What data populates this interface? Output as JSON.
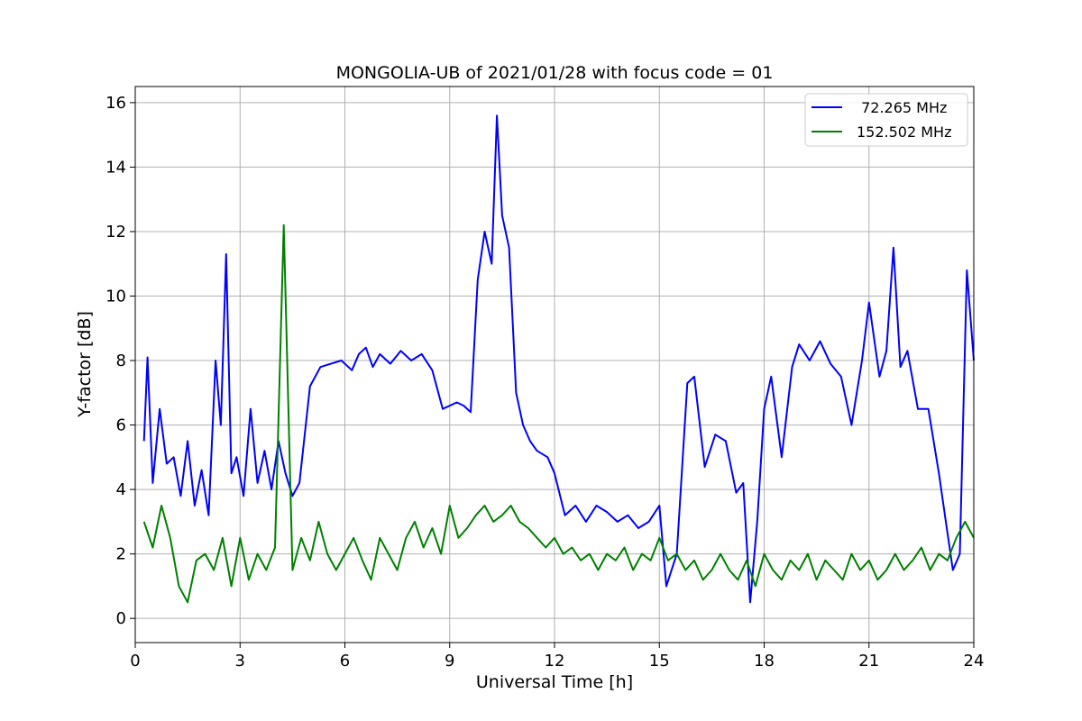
{
  "chart_data": {
    "type": "line",
    "title": "MONGOLIA-UB of 2021/01/28 with focus code = 01",
    "xlabel": "Universal Time [h]",
    "ylabel": "Y-factor [dB]",
    "xlim": [
      0,
      24
    ],
    "ylim": [
      -0.75,
      16.5
    ],
    "xticks": [
      0,
      3,
      6,
      9,
      12,
      15,
      18,
      21,
      24
    ],
    "yticks": [
      0,
      2,
      4,
      6,
      8,
      10,
      12,
      14,
      16
    ],
    "grid": true,
    "legend_position": "top-right",
    "series": [
      {
        "name": " 72.265 MHz",
        "color": "#0000ff",
        "x": [
          0.25,
          0.35,
          0.5,
          0.7,
          0.9,
          1.1,
          1.3,
          1.5,
          1.7,
          1.9,
          2.1,
          2.3,
          2.45,
          2.6,
          2.75,
          2.9,
          3.1,
          3.3,
          3.5,
          3.7,
          3.9,
          4.1,
          4.3,
          4.5,
          4.7,
          5.0,
          5.3,
          5.6,
          5.9,
          6.2,
          6.4,
          6.6,
          6.8,
          7.0,
          7.3,
          7.6,
          7.9,
          8.2,
          8.5,
          8.8,
          9.0,
          9.2,
          9.4,
          9.6,
          9.8,
          10.0,
          10.2,
          10.35,
          10.5,
          10.7,
          10.9,
          11.1,
          11.3,
          11.5,
          11.8,
          12.0,
          12.3,
          12.6,
          12.9,
          13.2,
          13.5,
          13.8,
          14.1,
          14.4,
          14.7,
          15.0,
          15.2,
          15.5,
          15.8,
          16.0,
          16.3,
          16.6,
          16.9,
          17.2,
          17.4,
          17.6,
          17.8,
          18.0,
          18.2,
          18.5,
          18.8,
          19.0,
          19.3,
          19.6,
          19.9,
          20.2,
          20.5,
          20.8,
          21.0,
          21.3,
          21.5,
          21.7,
          21.9,
          22.1,
          22.4,
          22.7,
          23.0,
          23.2,
          23.4,
          23.6,
          23.8,
          24.0
        ],
        "y": [
          5.5,
          8.1,
          4.2,
          6.5,
          4.8,
          5.0,
          3.8,
          5.5,
          3.5,
          4.6,
          3.2,
          8.0,
          6.0,
          11.3,
          4.5,
          5.0,
          3.8,
          6.5,
          4.2,
          5.2,
          4.0,
          5.5,
          4.5,
          3.8,
          4.2,
          7.2,
          7.8,
          7.9,
          8.0,
          7.7,
          8.2,
          8.4,
          7.8,
          8.2,
          7.9,
          8.3,
          8.0,
          8.2,
          7.7,
          6.5,
          6.6,
          6.7,
          6.6,
          6.4,
          10.5,
          12.0,
          11.0,
          15.6,
          12.5,
          11.5,
          7.0,
          6.0,
          5.5,
          5.2,
          5.0,
          4.5,
          3.2,
          3.5,
          3.0,
          3.5,
          3.3,
          3.0,
          3.2,
          2.8,
          3.0,
          3.5,
          1.0,
          2.0,
          7.3,
          7.5,
          4.7,
          5.7,
          5.5,
          3.9,
          4.2,
          0.5,
          3.0,
          6.5,
          7.5,
          5.0,
          7.8,
          8.5,
          8.0,
          8.6,
          7.9,
          7.5,
          6.0,
          8.0,
          9.8,
          7.5,
          8.3,
          11.5,
          7.8,
          8.3,
          6.5,
          6.5,
          4.5,
          3.0,
          1.5,
          2.0,
          10.8,
          8.0
        ]
      },
      {
        "name": "152.502 MHz",
        "color": "#008000",
        "x": [
          0.25,
          0.5,
          0.75,
          1.0,
          1.25,
          1.5,
          1.75,
          2.0,
          2.25,
          2.5,
          2.75,
          3.0,
          3.25,
          3.5,
          3.75,
          4.0,
          4.25,
          4.5,
          4.75,
          5.0,
          5.25,
          5.5,
          5.75,
          6.0,
          6.25,
          6.5,
          6.75,
          7.0,
          7.25,
          7.5,
          7.75,
          8.0,
          8.25,
          8.5,
          8.75,
          9.0,
          9.25,
          9.5,
          9.75,
          10.0,
          10.25,
          10.5,
          10.75,
          11.0,
          11.25,
          11.5,
          11.75,
          12.0,
          12.25,
          12.5,
          12.75,
          13.0,
          13.25,
          13.5,
          13.75,
          14.0,
          14.25,
          14.5,
          14.75,
          15.0,
          15.25,
          15.5,
          15.75,
          16.0,
          16.25,
          16.5,
          16.75,
          17.0,
          17.25,
          17.5,
          17.75,
          18.0,
          18.25,
          18.5,
          18.75,
          19.0,
          19.25,
          19.5,
          19.75,
          20.0,
          20.25,
          20.5,
          20.75,
          21.0,
          21.25,
          21.5,
          21.75,
          22.0,
          22.25,
          22.5,
          22.75,
          23.0,
          23.25,
          23.5,
          23.75,
          24.0
        ],
        "y": [
          3.0,
          2.2,
          3.5,
          2.5,
          1.0,
          0.5,
          1.8,
          2.0,
          1.5,
          2.5,
          1.0,
          2.5,
          1.2,
          2.0,
          1.5,
          2.2,
          12.2,
          1.5,
          2.5,
          1.8,
          3.0,
          2.0,
          1.5,
          2.0,
          2.5,
          1.8,
          1.2,
          2.5,
          2.0,
          1.5,
          2.5,
          3.0,
          2.2,
          2.8,
          2.0,
          3.5,
          2.5,
          2.8,
          3.2,
          3.5,
          3.0,
          3.2,
          3.5,
          3.0,
          2.8,
          2.5,
          2.2,
          2.5,
          2.0,
          2.2,
          1.8,
          2.0,
          1.5,
          2.0,
          1.8,
          2.2,
          1.5,
          2.0,
          1.8,
          2.5,
          1.8,
          2.0,
          1.5,
          1.8,
          1.2,
          1.5,
          2.0,
          1.5,
          1.2,
          1.8,
          1.0,
          2.0,
          1.5,
          1.2,
          1.8,
          1.5,
          2.0,
          1.2,
          1.8,
          1.5,
          1.2,
          2.0,
          1.5,
          1.8,
          1.2,
          1.5,
          2.0,
          1.5,
          1.8,
          2.2,
          1.5,
          2.0,
          1.8,
          2.5,
          3.0,
          2.5
        ]
      }
    ]
  }
}
